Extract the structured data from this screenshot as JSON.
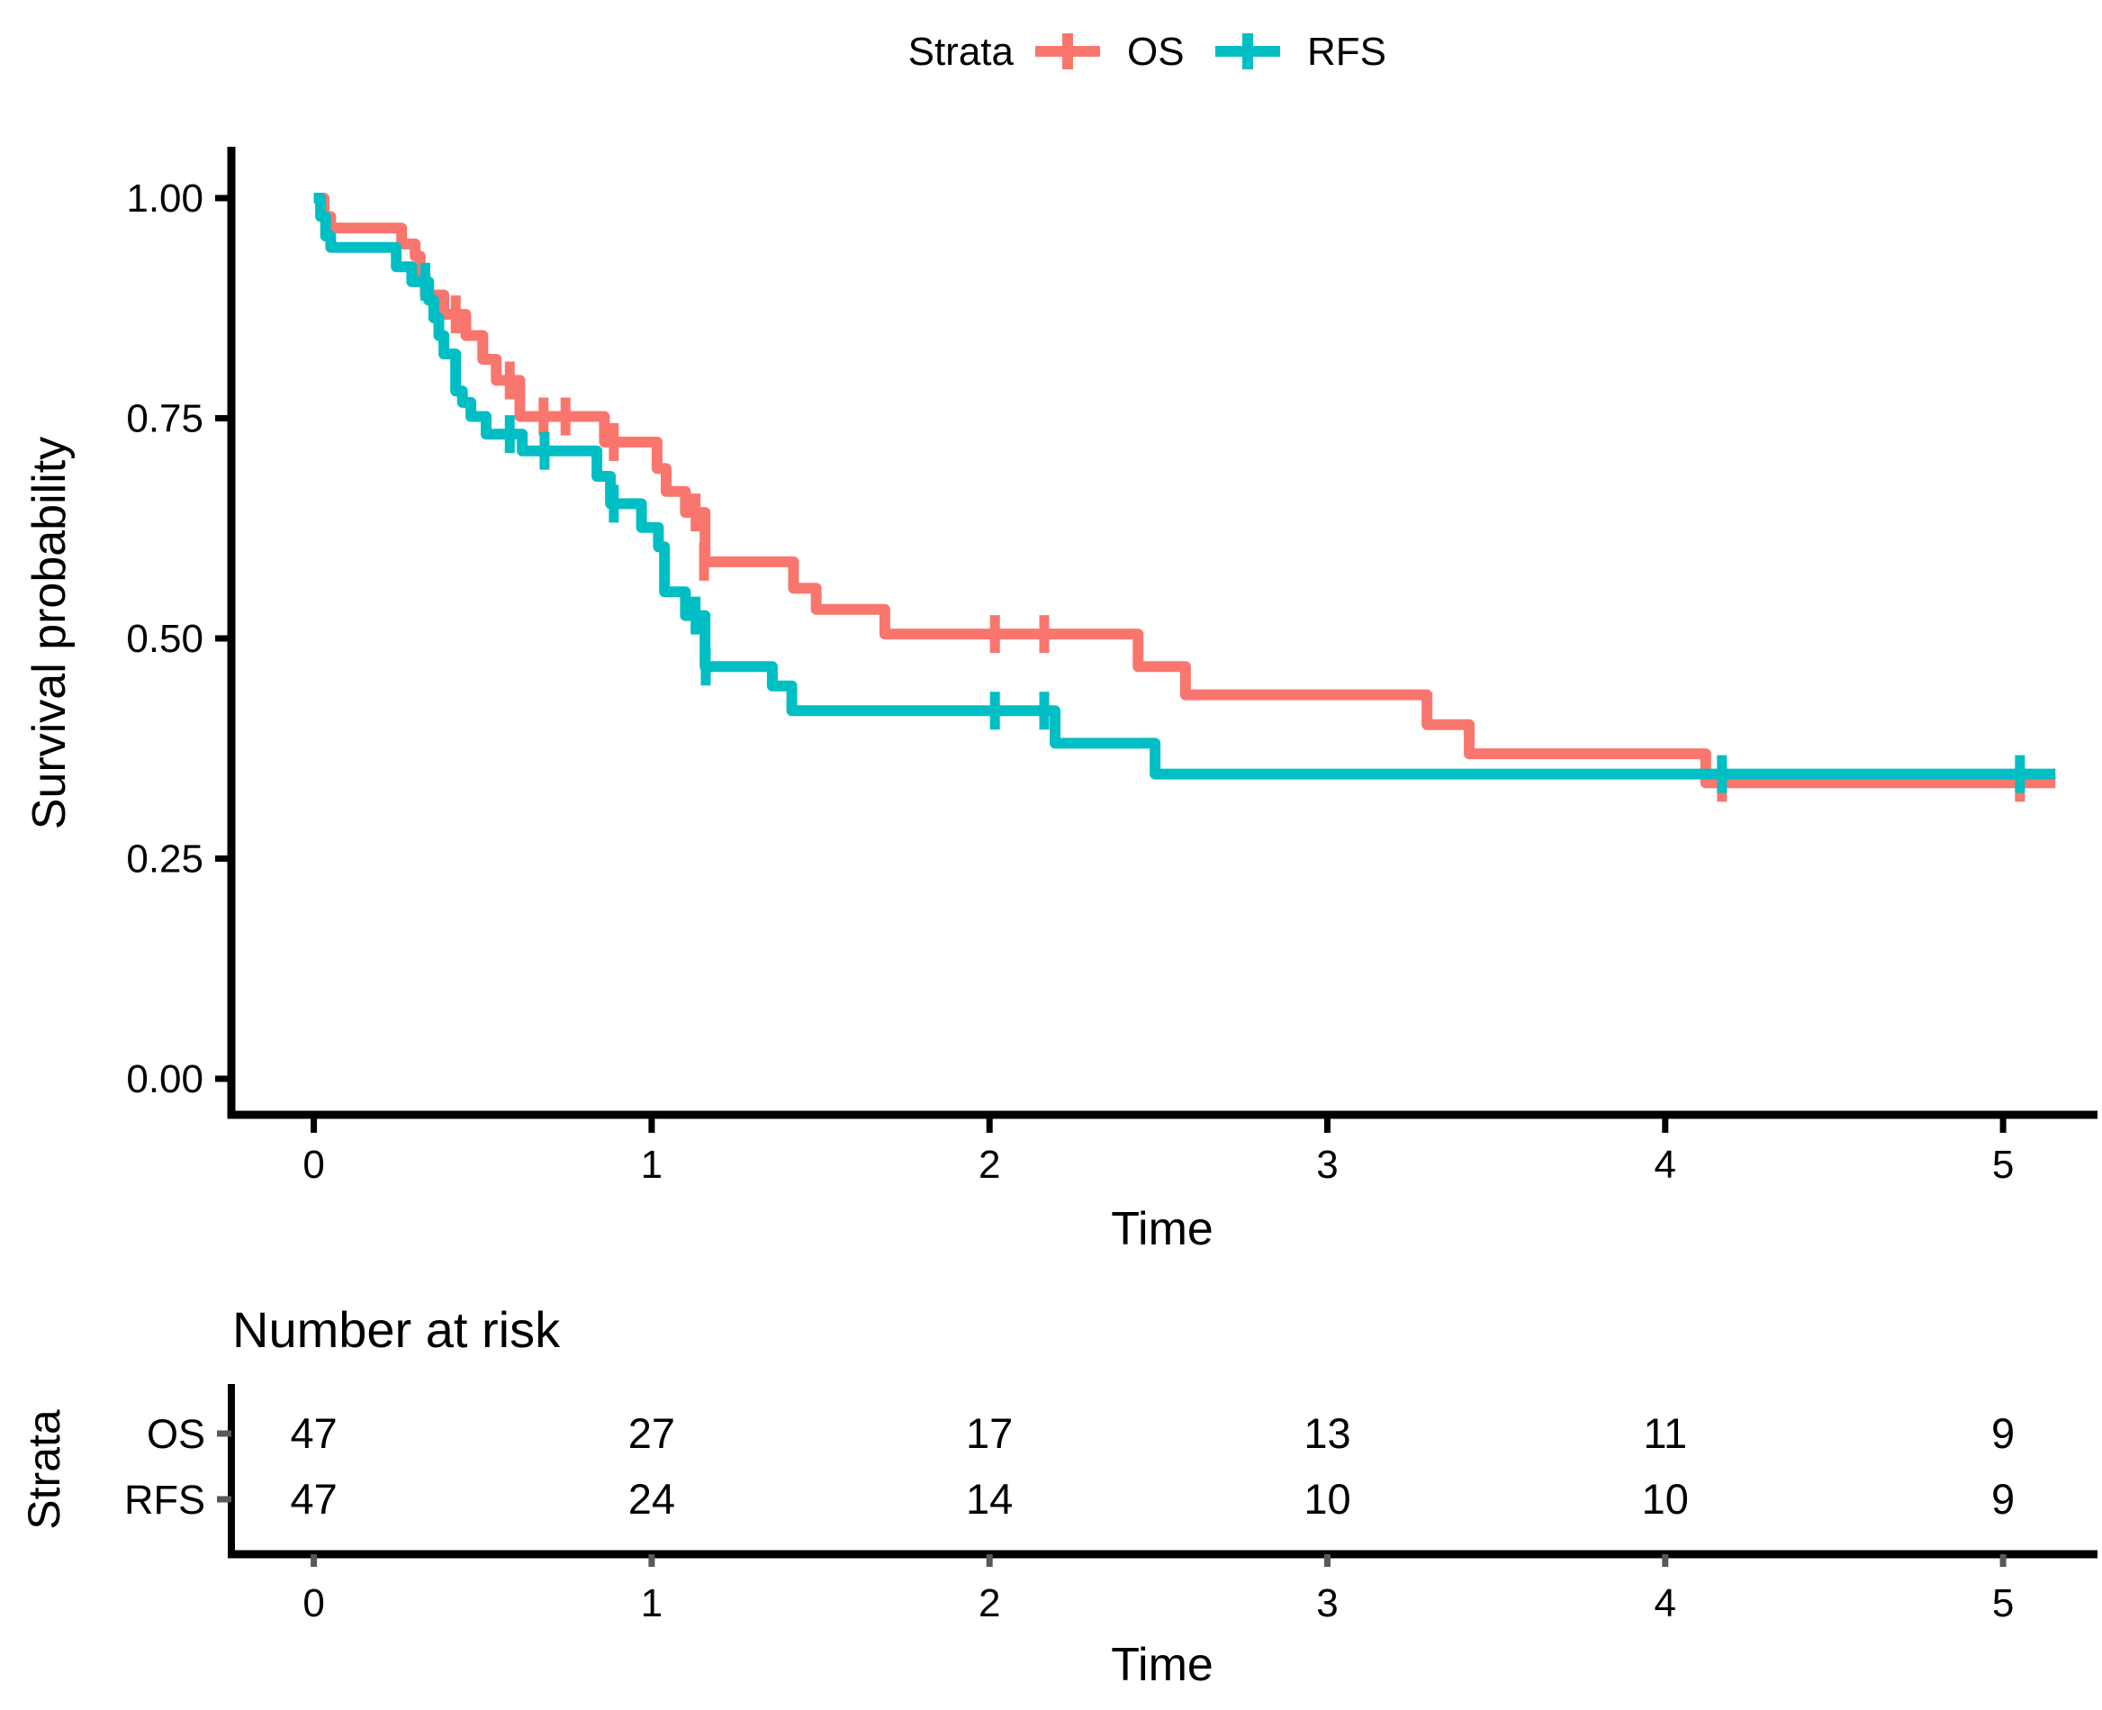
{
  "legend": {
    "title": "Strata",
    "items": [
      {
        "label": "OS",
        "color": "#F8766D"
      },
      {
        "label": "RFS",
        "color": "#00BFC4"
      }
    ]
  },
  "chart_data": {
    "type": "line",
    "subtype": "kaplan-meier-step-curve",
    "title": "",
    "xlabel": "Time",
    "ylabel": "Survival probability",
    "xlim": [
      0,
      5.26
    ],
    "ylim": [
      0,
      1
    ],
    "grid": false,
    "legend_position": "top",
    "xticks": [
      0,
      1,
      2,
      3,
      4,
      5
    ],
    "yticks": [
      {
        "label": "0.00",
        "value": 0
      },
      {
        "label": "0.25",
        "value": 0.25
      },
      {
        "label": "0.50",
        "value": 0.5
      },
      {
        "label": "0.75",
        "value": 0.75
      },
      {
        "label": "1.00",
        "value": 1
      }
    ],
    "series": [
      {
        "name": "OS",
        "color": "#F8766D",
        "end_time": 5.155,
        "steps": [
          [
            0,
            1.0
          ],
          [
            0.03,
            0.979
          ],
          [
            0.05,
            0.966
          ],
          [
            0.26,
            0.948
          ],
          [
            0.3,
            0.934
          ],
          [
            0.315,
            0.912
          ],
          [
            0.33,
            0.89
          ],
          [
            0.385,
            0.868
          ],
          [
            0.45,
            0.844
          ],
          [
            0.5,
            0.817
          ],
          [
            0.54,
            0.793
          ],
          [
            0.61,
            0.752
          ],
          [
            0.86,
            0.723
          ],
          [
            1.016,
            0.693
          ],
          [
            1.043,
            0.667
          ],
          [
            1.1,
            0.643
          ],
          [
            1.158,
            0.587
          ],
          [
            1.42,
            0.557
          ],
          [
            1.487,
            0.533
          ],
          [
            1.69,
            0.505
          ],
          [
            2.44,
            0.468
          ],
          [
            2.58,
            0.436
          ],
          [
            3.295,
            0.402
          ],
          [
            3.42,
            0.369
          ],
          [
            4.12,
            0.336
          ]
        ],
        "censors": [
          [
            0.42,
            0.868
          ],
          [
            0.58,
            0.793
          ],
          [
            0.68,
            0.752
          ],
          [
            0.745,
            0.752
          ],
          [
            0.888,
            0.723
          ],
          [
            1.13,
            0.643
          ],
          [
            1.155,
            0.587
          ],
          [
            2.016,
            0.505
          ],
          [
            2.162,
            0.505
          ],
          [
            4.168,
            0.336
          ],
          [
            5.05,
            0.336
          ]
        ]
      },
      {
        "name": "RFS",
        "color": "#00BFC4",
        "end_time": 5.155,
        "steps": [
          [
            0,
            1.0
          ],
          [
            0.02,
            0.979
          ],
          [
            0.035,
            0.957
          ],
          [
            0.05,
            0.944
          ],
          [
            0.244,
            0.922
          ],
          [
            0.29,
            0.905
          ],
          [
            0.34,
            0.884
          ],
          [
            0.355,
            0.864
          ],
          [
            0.37,
            0.844
          ],
          [
            0.385,
            0.823
          ],
          [
            0.42,
            0.781
          ],
          [
            0.44,
            0.768
          ],
          [
            0.465,
            0.752
          ],
          [
            0.51,
            0.732
          ],
          [
            0.617,
            0.713
          ],
          [
            0.838,
            0.684
          ],
          [
            0.878,
            0.653
          ],
          [
            0.97,
            0.626
          ],
          [
            1.02,
            0.604
          ],
          [
            1.038,
            0.553
          ],
          [
            1.1,
            0.526
          ],
          [
            1.158,
            0.468
          ],
          [
            1.357,
            0.446
          ],
          [
            1.415,
            0.418
          ],
          [
            2.194,
            0.381
          ],
          [
            2.49,
            0.346
          ]
        ],
        "censors": [
          [
            0.33,
            0.905
          ],
          [
            0.58,
            0.732
          ],
          [
            0.683,
            0.713
          ],
          [
            0.888,
            0.653
          ],
          [
            1.13,
            0.526
          ],
          [
            1.16,
            0.468
          ],
          [
            2.016,
            0.418
          ],
          [
            2.162,
            0.418
          ],
          [
            4.168,
            0.346
          ],
          [
            5.05,
            0.346
          ]
        ]
      }
    ]
  },
  "risk_table": {
    "title": "Number at risk",
    "y_axis_label": "Strata",
    "xlabel": "Time",
    "time_points": [
      0,
      1,
      2,
      3,
      4,
      5
    ],
    "rows": [
      {
        "label": "OS",
        "color": "#F8766D",
        "values": [
          47,
          27,
          17,
          13,
          11,
          9
        ]
      },
      {
        "label": "RFS",
        "color": "#00BFC4",
        "values": [
          47,
          24,
          14,
          10,
          10,
          9
        ]
      }
    ]
  }
}
